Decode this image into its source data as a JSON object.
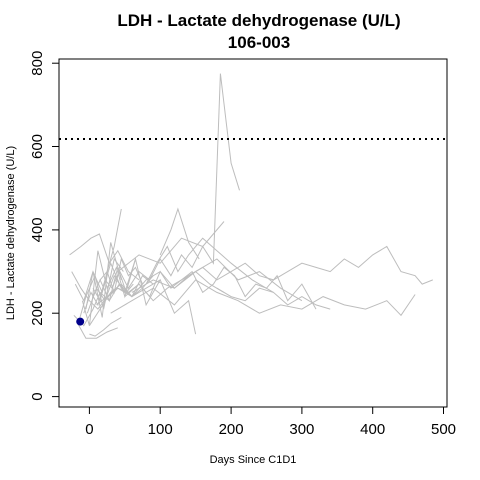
{
  "chart_data": {
    "type": "line",
    "title": "LDH - Lactate dehydrogenase (U/L)",
    "subtitle": "106-003",
    "xlabel": "Days Since C1D1",
    "ylabel": "LDH - Lactate dehydrogenase (U/L)",
    "xlim": [
      -43,
      505
    ],
    "ylim": [
      -25,
      810
    ],
    "x_ticks": [
      0,
      100,
      200,
      300,
      400,
      500
    ],
    "y_ticks": [
      0,
      200,
      400,
      600,
      800
    ],
    "x_tick_labels": [
      "0",
      "100",
      "200",
      "300",
      "400",
      "500"
    ],
    "y_tick_labels": [
      "0",
      "200",
      "400",
      "600",
      "800"
    ],
    "reference_line": {
      "y": 618,
      "style": "dotted"
    },
    "grid": false,
    "colors": {
      "other_patients": "#bdbdbd",
      "highlight": "#00008b",
      "reference": "#000000"
    },
    "other_patients": [
      {
        "x": [
          -22,
          -8,
          5,
          15,
          28,
          42,
          60,
          80,
          100
        ],
        "y": [
          195,
          170,
          210,
          250,
          230,
          270,
          240,
          260,
          280
        ]
      },
      {
        "x": [
          -15,
          -5,
          8,
          20,
          35,
          48
        ],
        "y": [
          180,
          240,
          290,
          210,
          330,
          300
        ]
      },
      {
        "x": [
          -10,
          0,
          12,
          25,
          38,
          50,
          65
        ],
        "y": [
          230,
          170,
          350,
          260,
          310,
          240,
          330
        ]
      },
      {
        "x": [
          -5,
          5,
          18,
          30,
          45
        ],
        "y": [
          210,
          300,
          190,
          370,
          280
        ]
      },
      {
        "x": [
          -28,
          -12,
          2,
          14,
          28,
          40,
          55,
          70
        ],
        "y": [
          340,
          360,
          380,
          390,
          320,
          350,
          300,
          280
        ]
      },
      {
        "x": [
          -3,
          10,
          22,
          35,
          50,
          65,
          80,
          100,
          120,
          140,
          150
        ],
        "y": [
          200,
          260,
          230,
          290,
          250,
          330,
          220,
          280,
          200,
          230,
          150
        ]
      },
      {
        "x": [
          0,
          8,
          20,
          30,
          45
        ],
        "y": [
          150,
          145,
          160,
          175,
          190
        ]
      },
      {
        "x": [
          -18,
          -5,
          10,
          25,
          40
        ],
        "y": [
          180,
          140,
          140,
          155,
          165
        ]
      },
      {
        "x": [
          -20,
          -8,
          5,
          18,
          30,
          45,
          60,
          75,
          90
        ],
        "y": [
          270,
          230,
          300,
          250,
          320,
          260,
          240,
          290,
          270
        ]
      },
      {
        "x": [
          5,
          15,
          28,
          40,
          55,
          70,
          85,
          100,
          115,
          130,
          145,
          160,
          175,
          185,
          200,
          212
        ],
        "y": [
          240,
          280,
          230,
          310,
          260,
          300,
          280,
          330,
          290,
          340,
          310,
          360,
          320,
          775,
          560,
          495
        ]
      },
      {
        "x": [
          10,
          25,
          40,
          55,
          70,
          85,
          100,
          115,
          130,
          145,
          160,
          175,
          190,
          205,
          220,
          235,
          250,
          265,
          280,
          300,
          320
        ],
        "y": [
          220,
          240,
          260,
          250,
          270,
          240,
          300,
          260,
          280,
          300,
          250,
          270,
          310,
          290,
          240,
          270,
          260,
          290,
          230,
          270,
          210
        ]
      },
      {
        "x": [
          20,
          40,
          60,
          80,
          100,
          120,
          140,
          160,
          180,
          200,
          220,
          240,
          260,
          280,
          300,
          320,
          340,
          360,
          380,
          400,
          420,
          440,
          460,
          470,
          485
        ],
        "y": [
          230,
          260,
          240,
          280,
          300,
          260,
          290,
          310,
          280,
          300,
          320,
          290,
          280,
          300,
          320,
          310,
          300,
          330,
          310,
          340,
          360,
          300,
          290,
          270,
          280
        ]
      },
      {
        "x": [
          30,
          60,
          90,
          120,
          150,
          180,
          210,
          240,
          270,
          300,
          330,
          360,
          390,
          420,
          440,
          460
        ],
        "y": [
          200,
          230,
          260,
          220,
          280,
          250,
          230,
          200,
          220,
          210,
          240,
          220,
          210,
          230,
          195,
          245
        ]
      },
      {
        "x": [
          60,
          90,
          120,
          150,
          180,
          210,
          240,
          270,
          300
        ],
        "y": [
          250,
          280,
          260,
          300,
          330,
          280,
          300,
          260,
          230
        ]
      },
      {
        "x": [
          40,
          70,
          100,
          130,
          160,
          190
        ],
        "y": [
          300,
          340,
          320,
          380,
          360,
          420
        ]
      },
      {
        "x": [
          100,
          115,
          125,
          140,
          155
        ],
        "y": [
          340,
          400,
          450,
          370,
          330
        ]
      },
      {
        "x": [
          80,
          95,
          110,
          125,
          140,
          160,
          180,
          200,
          230,
          260
        ],
        "y": [
          270,
          320,
          360,
          300,
          340,
          380,
          350,
          320,
          280,
          250
        ]
      },
      {
        "x": [
          50,
          70,
          90,
          110,
          130,
          150,
          170,
          190
        ],
        "y": [
          240,
          270,
          230,
          260,
          280,
          300,
          270,
          250
        ]
      },
      {
        "x": [
          0,
          15,
          30,
          45,
          60,
          75,
          90
        ],
        "y": [
          170,
          210,
          250,
          270,
          240,
          260,
          290
        ]
      },
      {
        "x": [
          -8,
          2,
          12,
          22,
          32,
          42,
          52,
          62
        ],
        "y": [
          200,
          250,
          220,
          280,
          260,
          300,
          250,
          270
        ]
      },
      {
        "x": [
          5,
          15,
          25,
          35,
          45,
          55,
          65,
          75
        ],
        "y": [
          260,
          230,
          300,
          250,
          330,
          290,
          310,
          270
        ]
      },
      {
        "x": [
          15,
          25,
          35,
          45
        ],
        "y": [
          280,
          300,
          360,
          450
        ]
      },
      {
        "x": [
          -25,
          -12,
          0,
          12,
          25,
          38
        ],
        "y": [
          300,
          260,
          230,
          210,
          240,
          260
        ]
      },
      {
        "x": [
          180,
          200,
          220,
          240,
          260,
          280,
          300,
          320,
          340
        ],
        "y": [
          260,
          240,
          230,
          260,
          250,
          220,
          240,
          220,
          210
        ]
      }
    ],
    "highlight_patient": {
      "x": [
        -13
      ],
      "y": [
        180
      ]
    }
  }
}
